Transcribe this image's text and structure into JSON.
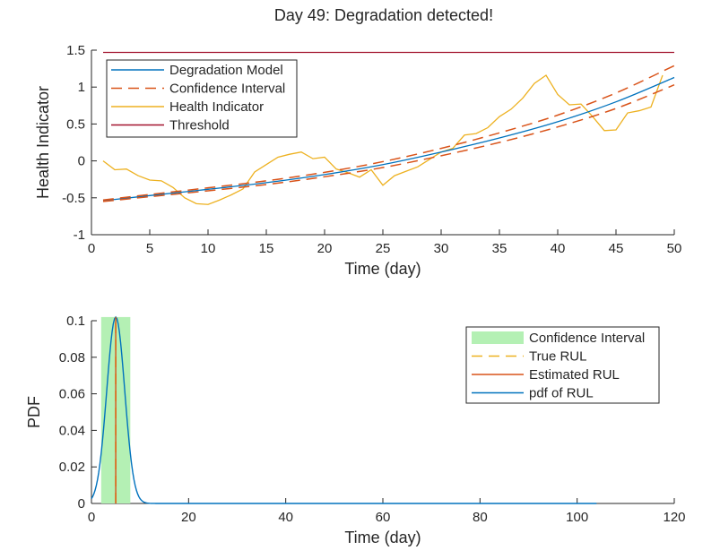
{
  "chart_data": [
    {
      "type": "line",
      "title": "Day 49: Degradation detected!",
      "xlabel": "Time (day)",
      "ylabel": "Health Indicator",
      "xlim": [
        0,
        50
      ],
      "ylim": [
        -1,
        1.5
      ],
      "xticks": [
        "0",
        "5",
        "10",
        "15",
        "20",
        "25",
        "30",
        "35",
        "40",
        "45",
        "50"
      ],
      "yticks": [
        "-1",
        "-0.5",
        "0",
        "0.5",
        "1",
        "1.5"
      ],
      "legend_position": "top-left",
      "series": [
        {
          "name": "Degradation Model",
          "color": "#0072BD",
          "style": "solid",
          "x": [
            1,
            5,
            10,
            15,
            20,
            25,
            30,
            35,
            40,
            45,
            50
          ],
          "y": [
            -0.54,
            -0.47,
            -0.385,
            -0.295,
            -0.185,
            -0.05,
            0.12,
            0.31,
            0.53,
            0.8,
            1.13
          ]
        },
        {
          "name": "Confidence Interval",
          "color": "#D95319",
          "style": "dashed",
          "x": [
            1,
            5,
            10,
            15,
            20,
            25,
            30,
            35,
            40,
            45,
            50
          ],
          "y": [
            -0.53,
            -0.455,
            -0.365,
            -0.27,
            -0.155,
            -0.01,
            0.17,
            0.38,
            0.62,
            0.92,
            1.29
          ]
        },
        {
          "name": "Confidence Interval (lower)",
          "color": "#D95319",
          "style": "dashed",
          "x": [
            1,
            5,
            10,
            15,
            20,
            25,
            30,
            35,
            40,
            45,
            50
          ],
          "y": [
            -0.55,
            -0.485,
            -0.405,
            -0.32,
            -0.215,
            -0.09,
            0.07,
            0.25,
            0.46,
            0.71,
            1.03
          ]
        },
        {
          "name": "Health Indicator",
          "color": "#EDB120",
          "style": "solid",
          "x": [
            1,
            2,
            3,
            4,
            5,
            6,
            7,
            8,
            9,
            10,
            11,
            12,
            13,
            14,
            15,
            16,
            17,
            18,
            19,
            20,
            21,
            22,
            23,
            24,
            25,
            26,
            27,
            28,
            29,
            30,
            31,
            32,
            33,
            34,
            35,
            36,
            37,
            38,
            39,
            40,
            41,
            42,
            43,
            44,
            45,
            46,
            47,
            48,
            49
          ],
          "y": [
            0.0,
            -0.12,
            -0.11,
            -0.2,
            -0.26,
            -0.27,
            -0.36,
            -0.5,
            -0.58,
            -0.59,
            -0.53,
            -0.46,
            -0.38,
            -0.15,
            -0.05,
            0.05,
            0.09,
            0.12,
            0.03,
            0.05,
            -0.11,
            -0.16,
            -0.22,
            -0.12,
            -0.33,
            -0.2,
            -0.14,
            -0.08,
            0.02,
            0.12,
            0.17,
            0.35,
            0.37,
            0.45,
            0.6,
            0.7,
            0.85,
            1.05,
            1.16,
            0.9,
            0.76,
            0.77,
            0.6,
            0.41,
            0.42,
            0.65,
            0.68,
            0.73,
            1.16
          ]
        },
        {
          "name": "Threshold",
          "color": "#A2142F",
          "style": "solid",
          "x": [
            1,
            50
          ],
          "y": [
            1.47,
            1.47
          ]
        }
      ]
    },
    {
      "type": "line",
      "title": "",
      "xlabel": "Time (day)",
      "ylabel": "PDF",
      "xlim": [
        0,
        120
      ],
      "ylim": [
        0,
        0.1
      ],
      "xticks": [
        "0",
        "20",
        "40",
        "60",
        "80",
        "100",
        "120"
      ],
      "yticks": [
        "0",
        "0.02",
        "0.04",
        "0.06",
        "0.08",
        "0.1"
      ],
      "legend_position": "top-right",
      "confidence_interval": [
        2,
        8
      ],
      "true_rul": 5,
      "estimated_rul": 5,
      "pdf_peak": 0.102,
      "pdf_extent": [
        0,
        104
      ],
      "legend": [
        {
          "name": "Confidence Interval",
          "color": "#B4F0B4",
          "style": "patch"
        },
        {
          "name": "True RUL",
          "color": "#EDB120",
          "style": "dashed"
        },
        {
          "name": "Estimated RUL",
          "color": "#D95319",
          "style": "solid"
        },
        {
          "name": "pdf of RUL",
          "color": "#0072BD",
          "style": "solid"
        }
      ]
    }
  ]
}
